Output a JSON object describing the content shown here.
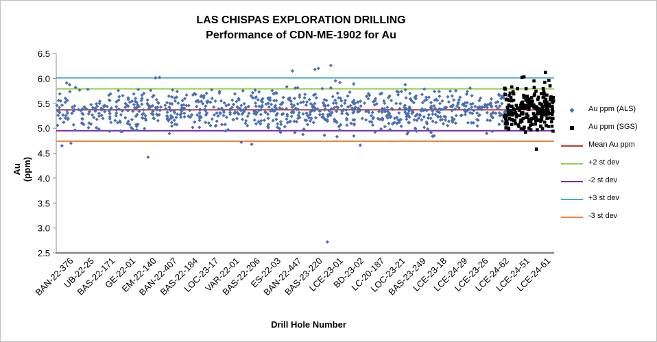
{
  "chart_data": {
    "type": "scatter",
    "title": "LAS CHISPAS EXPLORATION DRILLING",
    "subtitle": "Performance of CDN-ME-1902 for Au",
    "xlabel": "Drill Hole Number",
    "ylabel": "Au (ppm)",
    "ylim": [
      2.5,
      6.5
    ],
    "yticks": [
      "2.5",
      "3.0",
      "3.5",
      "4.0",
      "4.5",
      "5.0",
      "5.5",
      "6.0",
      "6.5"
    ],
    "x_tick_labels": [
      "BAN-22-376",
      "UB-22-25",
      "BAS-22-171",
      "GE-22-01",
      "EM-22-140",
      "BAN-22-407",
      "BAS-22-184",
      "LOC-23-17",
      "VAR-22-01",
      "BAS-22-206",
      "ES-22-03",
      "BAN-22-447",
      "BAS-23-220",
      "LCE-23-01",
      "BD-23-02",
      "LC-20-187",
      "LOC-23-21",
      "BAS-23-249",
      "LCE-23-18",
      "LCE-24-29",
      "LCE-23-26",
      "LCE-24-62",
      "LCE-24-51",
      "LCE-24-61"
    ],
    "n_categories": 1000,
    "reference_lines": [
      {
        "name": "Mean Au ppm",
        "value": 5.37,
        "color": "#c0392b"
      },
      {
        "name": "+2 st dev",
        "value": 5.79,
        "color": "#92d050"
      },
      {
        "name": "-2 st dev",
        "value": 4.95,
        "color": "#7030a0"
      },
      {
        "name": "+3 st dev",
        "value": 6.01,
        "color": "#4bacc6"
      },
      {
        "name": "-3 st dev",
        "value": 4.74,
        "color": "#f0843a"
      }
    ],
    "series": [
      {
        "name": "Au ppm (ALS)",
        "color": "#4a6fb5",
        "marker": "diamond",
        "x_range": [
          1,
          905
        ],
        "count": 900,
        "spread_min": 4.65,
        "spread_max": 5.95,
        "outliers": [
          [
            12,
            4.65
          ],
          [
            30,
            4.7
          ],
          [
            185,
            4.42
          ],
          [
            200,
            6.01
          ],
          [
            208,
            6.02
          ],
          [
            372,
            4.72
          ],
          [
            393,
            4.68
          ],
          [
            475,
            6.15
          ],
          [
            520,
            6.18
          ],
          [
            527,
            6.2
          ],
          [
            552,
            6.26
          ],
          [
            545,
            2.72
          ],
          [
            611,
            4.66
          ]
        ]
      },
      {
        "name": "Au ppm (SGS)",
        "color": "#000000",
        "marker": "square",
        "x_range": [
          900,
          1000
        ],
        "count": 230,
        "spread_min": 4.92,
        "spread_max": 5.95,
        "outliers": [
          [
            936,
            6.02
          ],
          [
            940,
            6.03
          ],
          [
            960,
            5.95
          ],
          [
            965,
            4.58
          ],
          [
            983,
            6.12
          ],
          [
            990,
            5.96
          ]
        ]
      }
    ],
    "grid": false,
    "legend_position": "right"
  }
}
